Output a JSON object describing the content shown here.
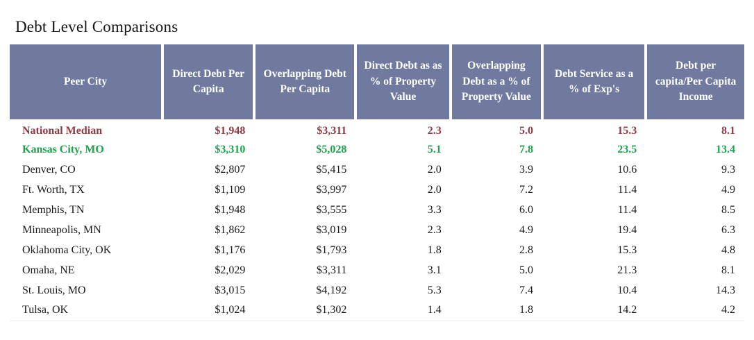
{
  "title": "Debt Level Comparisons",
  "colors": {
    "header_bg": "#6F7A9E",
    "header_text": "#FFFFFF",
    "national_median_text": "#8E3B44",
    "kansas_city_text": "#1FA14E",
    "body_text": "#1A1A1A"
  },
  "table": {
    "columns": [
      "Peer City",
      "Direct Debt Per Capita",
      "Overlapping Debt Per Capita",
      "Direct Debt as as % of Property Value",
      "Overlapping Debt as a % of Property Value",
      "Debt Service as a % of Exp's",
      "Debt per capita/Per Capita Income"
    ],
    "rows": [
      {
        "city": "National Median",
        "style": "median",
        "values": [
          "$1,948",
          "$3,311",
          "2.3",
          "5.0",
          "15.3",
          "8.1"
        ]
      },
      {
        "city": "Kansas City, MO",
        "style": "highlight",
        "values": [
          "$3,310",
          "$5,028",
          "5.1",
          "7.8",
          "23.5",
          "13.4"
        ]
      },
      {
        "city": "Denver, CO",
        "style": "normal",
        "values": [
          "$2,807",
          "$5,415",
          "2.0",
          "3.9",
          "10.6",
          "9.3"
        ]
      },
      {
        "city": "Ft. Worth, TX",
        "style": "normal",
        "values": [
          "$1,109",
          "$3,997",
          "2.0",
          "7.2",
          "11.4",
          "4.9"
        ]
      },
      {
        "city": "Memphis, TN",
        "style": "normal",
        "values": [
          "$1,948",
          "$3,555",
          "3.3",
          "6.0",
          "11.4",
          "8.5"
        ]
      },
      {
        "city": "Minneapolis, MN",
        "style": "normal",
        "values": [
          "$1,862",
          "$3,019",
          "2.3",
          "4.9",
          "19.4",
          "6.3"
        ]
      },
      {
        "city": "Oklahoma City, OK",
        "style": "normal",
        "values": [
          "$1,176",
          "$1,793",
          "1.8",
          "2.8",
          "15.3",
          "4.8"
        ]
      },
      {
        "city": "Omaha, NE",
        "style": "normal",
        "values": [
          "$2,029",
          "$3,311",
          "3.1",
          "5.0",
          "21.3",
          "8.1"
        ]
      },
      {
        "city": "St. Louis, MO",
        "style": "normal",
        "values": [
          "$3,015",
          "$4,192",
          "5.3",
          "7.4",
          "10.4",
          "14.3"
        ]
      },
      {
        "city": "Tulsa, OK",
        "style": "normal",
        "values": [
          "$1,024",
          "$1,302",
          "1.4",
          "1.8",
          "14.2",
          "4.2"
        ]
      }
    ]
  }
}
